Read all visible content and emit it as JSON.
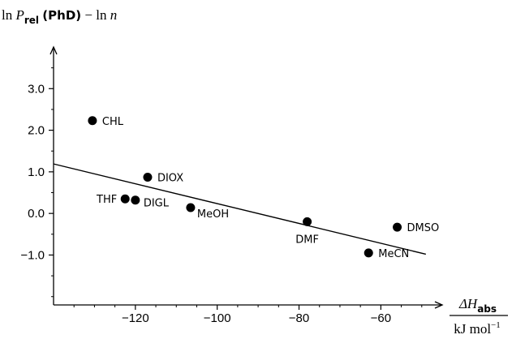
{
  "chart_data": {
    "type": "scatter",
    "y_label_parts": {
      "ln": "ln",
      "P": "P",
      "sub": "rel",
      "paren": "(PhD)",
      "minus": "−",
      "ln2": "ln",
      "n": "n"
    },
    "x_label_parts": {
      "delta": "ΔH",
      "sub": "abs",
      "unit": "kJ mol",
      "exp": "−1"
    },
    "xlim": [
      -140,
      -45
    ],
    "ylim": [
      -2.2,
      4.0
    ],
    "x_ticks": [
      -120,
      -100,
      -80,
      -60
    ],
    "x_tick_labels": [
      "−120",
      "−100",
      "−80",
      "−60"
    ],
    "y_ticks": [
      -1.0,
      0.0,
      1.0,
      2.0,
      3.0
    ],
    "y_tick_labels": [
      "−1.0",
      "0.0",
      "1.0",
      "2.0",
      "3.0"
    ],
    "points": [
      {
        "label": "CHL",
        "x": -130.5,
        "y": 2.23
      },
      {
        "label": "DIOX",
        "x": -117.0,
        "y": 0.87
      },
      {
        "label": "THF",
        "x": -122.5,
        "y": 0.35
      },
      {
        "label": "DIGL",
        "x": -120.0,
        "y": 0.32
      },
      {
        "label": "MeOH",
        "x": -106.5,
        "y": 0.14
      },
      {
        "label": "DMF",
        "x": -78.0,
        "y": -0.2
      },
      {
        "label": "DMSO",
        "x": -56.0,
        "y": -0.33
      },
      {
        "label": "MeCN",
        "x": -63.0,
        "y": -0.95
      }
    ],
    "fit_line": {
      "x": [
        -140,
        -49
      ],
      "y": [
        1.19,
        -0.98
      ]
    },
    "grid": false,
    "legend": "none"
  }
}
